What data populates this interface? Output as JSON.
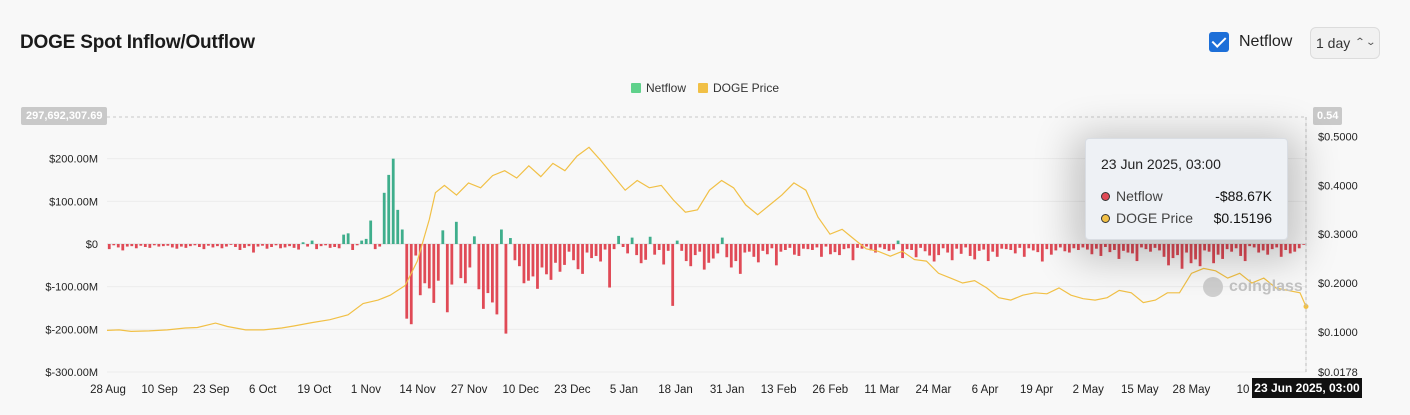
{
  "header": {
    "title": "DOGE Spot Inflow/Outflow",
    "netflow_toggle_label": "Netflow",
    "interval": "1 day"
  },
  "legend": [
    {
      "label": "Netflow",
      "color": "#5fd18b"
    },
    {
      "label": "DOGE Price",
      "color": "#f1c046"
    }
  ],
  "tooltip": {
    "date": "23 Jun 2025, 03:00",
    "rows": [
      {
        "label": "Netflow",
        "value": "-$88.67K",
        "color": "#e04a56"
      },
      {
        "label": "DOGE Price",
        "value": "$0.15196",
        "color": "#f1c046"
      }
    ]
  },
  "crosshair_label": "23 Jun 2025, 03:00",
  "y_max_label": "297,692,307.69",
  "y_right_max_label": "0.54",
  "watermark": "coinglass",
  "colors": {
    "positive": "#3fae8c",
    "negative": "#e04a56",
    "price": "#f1c046",
    "background": "#f8f8f8"
  },
  "chart_data": {
    "type": "bar",
    "x_tick_labels": [
      "28 Aug",
      "10 Sep",
      "23 Sep",
      "6 Oct",
      "19 Oct",
      "1 Nov",
      "14 Nov",
      "27 Nov",
      "10 Dec",
      "23 Dec",
      "5 Jan",
      "18 Jan",
      "31 Jan",
      "13 Feb",
      "26 Feb",
      "11 Mar",
      "24 Mar",
      "6 Apr",
      "19 Apr",
      "2 May",
      "15 May",
      "28 May",
      "10",
      "23 Jun 2025, 03:00"
    ],
    "y_left_ticks": [
      {
        "label": "$200.00M",
        "value": 200
      },
      {
        "label": "$100.00M",
        "value": 100
      },
      {
        "label": "$0",
        "value": 0
      },
      {
        "label": "$-100.00M",
        "value": -100
      },
      {
        "label": "$-200.00M",
        "value": -200
      },
      {
        "label": "$-300.00M",
        "value": -300
      }
    ],
    "y_right_ticks": [
      {
        "label": "$0.5000",
        "value": 0.5
      },
      {
        "label": "$0.4000",
        "value": 0.4
      },
      {
        "label": "$0.3000",
        "value": 0.3
      },
      {
        "label": "$0.2000",
        "value": 0.2
      },
      {
        "label": "$0.1000",
        "value": 0.1
      },
      {
        "label": "$0.0178",
        "value": 0.0178
      }
    ],
    "ylim_left_millions": [
      -300,
      297.69
    ],
    "ylim_right": [
      0.0178,
      0.54
    ],
    "series": [
      {
        "name": "Netflow",
        "unit": "millions USD",
        "values": [
          -12,
          -3,
          -8,
          -15,
          -6,
          -5,
          -10,
          -4,
          -7,
          -9,
          -3,
          -6,
          -5,
          -4,
          -8,
          -11,
          -6,
          -9,
          -5,
          -3,
          -7,
          -12,
          -4,
          -8,
          -5,
          -10,
          -6,
          -2,
          -7,
          -14,
          -9,
          -5,
          -20,
          -6,
          -4,
          -11,
          -7,
          -3,
          -10,
          -8,
          -5,
          -9,
          -13,
          4,
          -6,
          8,
          -12,
          -5,
          -3,
          -9,
          -7,
          -10,
          22,
          25,
          -14,
          -3,
          8,
          12,
          55,
          -12,
          -6,
          120,
          162,
          200,
          80,
          34,
          -175,
          -188,
          -27,
          -120,
          -92,
          -104,
          -138,
          -86,
          32,
          -160,
          -95,
          52,
          -80,
          -92,
          -55,
          18,
          -106,
          -152,
          -115,
          -137,
          -165,
          34,
          -210,
          14,
          -38,
          -52,
          -92,
          -86,
          -76,
          -105,
          -55,
          -71,
          -84,
          -44,
          -65,
          -49,
          -18,
          -38,
          -59,
          -70,
          -20,
          -33,
          -28,
          -41,
          -13,
          -102,
          -12,
          19,
          -7,
          -22,
          15,
          -26,
          -45,
          -37,
          17,
          -25,
          -14,
          -48,
          -16,
          -145,
          8,
          -16,
          -40,
          -52,
          -26,
          -18,
          -60,
          -44,
          -34,
          -22,
          15,
          -31,
          -55,
          -40,
          -70,
          -20,
          -18,
          -30,
          -43,
          -16,
          -24,
          -10,
          -50,
          -18,
          -14,
          -9,
          -25,
          -28,
          -11,
          -12,
          -14,
          -8,
          -30,
          -6,
          -24,
          -19,
          -26,
          -12,
          -10,
          -38,
          -9,
          -11,
          -6,
          -15,
          -20,
          -8,
          -12,
          -16,
          -13,
          8,
          -33,
          -12,
          -14,
          -31,
          -9,
          -17,
          -27,
          -41,
          -26,
          -10,
          -20,
          -38,
          -11,
          -23,
          -8,
          -28,
          -36,
          -16,
          -13,
          -40,
          -18,
          -30,
          -11,
          -12,
          -14,
          -22,
          -9,
          -30,
          -10,
          -15,
          -19,
          -41,
          -12,
          -25,
          -15,
          -8,
          -17,
          -20,
          -10,
          -14,
          -8,
          -13,
          -24,
          -11,
          -28,
          -7,
          -19,
          -14,
          -35,
          -16,
          -20,
          -22,
          -40,
          -8,
          -12,
          -18,
          -9,
          -15,
          -30,
          -50,
          -33,
          -26,
          -58,
          -20,
          -45,
          -36,
          -52,
          -15,
          -18,
          -45,
          -25,
          -35,
          -12,
          -18,
          -10,
          -28,
          -40,
          -5,
          -8,
          -20,
          -15,
          -25,
          -12,
          -8,
          -30,
          -14,
          -22,
          -18,
          -10,
          -0.09
        ]
      },
      {
        "name": "DOGE Price",
        "unit": "USD",
        "points": [
          [
            0,
            0.103
          ],
          [
            4,
            0.104
          ],
          [
            8,
            0.101
          ],
          [
            14,
            0.102
          ],
          [
            20,
            0.104
          ],
          [
            26,
            0.108
          ],
          [
            30,
            0.109
          ],
          [
            36,
            0.118
          ],
          [
            40,
            0.111
          ],
          [
            46,
            0.104
          ],
          [
            52,
            0.104
          ],
          [
            58,
            0.108
          ],
          [
            62,
            0.112
          ],
          [
            68,
            0.119
          ],
          [
            74,
            0.125
          ],
          [
            80,
            0.135
          ],
          [
            85,
            0.158
          ],
          [
            90,
            0.165
          ],
          [
            94,
            0.175
          ],
          [
            99,
            0.195
          ],
          [
            103,
            0.245
          ],
          [
            107,
            0.33
          ],
          [
            109,
            0.385
          ],
          [
            112,
            0.4
          ],
          [
            116,
            0.38
          ],
          [
            120,
            0.405
          ],
          [
            124,
            0.395
          ],
          [
            128,
            0.42
          ],
          [
            132,
            0.43
          ],
          [
            136,
            0.415
          ],
          [
            140,
            0.44
          ],
          [
            144,
            0.418
          ],
          [
            148,
            0.445
          ],
          [
            152,
            0.43
          ],
          [
            156,
            0.46
          ],
          [
            160,
            0.478
          ],
          [
            164,
            0.45
          ],
          [
            168,
            0.42
          ],
          [
            172,
            0.39
          ],
          [
            176,
            0.41
          ],
          [
            180,
            0.395
          ],
          [
            184,
            0.4
          ],
          [
            188,
            0.37
          ],
          [
            192,
            0.345
          ],
          [
            196,
            0.35
          ],
          [
            200,
            0.39
          ],
          [
            204,
            0.41
          ],
          [
            208,
            0.395
          ],
          [
            212,
            0.36
          ],
          [
            216,
            0.34
          ],
          [
            220,
            0.36
          ],
          [
            224,
            0.38
          ],
          [
            228,
            0.405
          ],
          [
            232,
            0.39
          ],
          [
            236,
            0.335
          ],
          [
            240,
            0.3
          ],
          [
            244,
            0.31
          ],
          [
            248,
            0.29
          ],
          [
            252,
            0.27
          ],
          [
            256,
            0.265
          ],
          [
            260,
            0.255
          ],
          [
            264,
            0.265
          ],
          [
            268,
            0.248
          ],
          [
            272,
            0.245
          ],
          [
            276,
            0.22
          ],
          [
            280,
            0.21
          ],
          [
            284,
            0.2
          ],
          [
            288,
            0.205
          ],
          [
            292,
            0.19
          ],
          [
            296,
            0.17
          ],
          [
            300,
            0.165
          ],
          [
            304,
            0.175
          ],
          [
            308,
            0.18
          ],
          [
            312,
            0.178
          ],
          [
            316,
            0.19
          ],
          [
            320,
            0.175
          ],
          [
            324,
            0.168
          ],
          [
            328,
            0.165
          ],
          [
            332,
            0.17
          ],
          [
            336,
            0.185
          ],
          [
            340,
            0.18
          ],
          [
            344,
            0.16
          ],
          [
            348,
            0.165
          ],
          [
            352,
            0.18
          ],
          [
            356,
            0.18
          ],
          [
            360,
            0.22
          ],
          [
            364,
            0.23
          ],
          [
            368,
            0.225
          ],
          [
            372,
            0.21
          ],
          [
            376,
            0.22
          ],
          [
            380,
            0.2
          ],
          [
            384,
            0.21
          ],
          [
            388,
            0.19
          ],
          [
            392,
            0.185
          ],
          [
            396,
            0.18
          ],
          [
            398,
            0.152
          ]
        ]
      }
    ]
  }
}
